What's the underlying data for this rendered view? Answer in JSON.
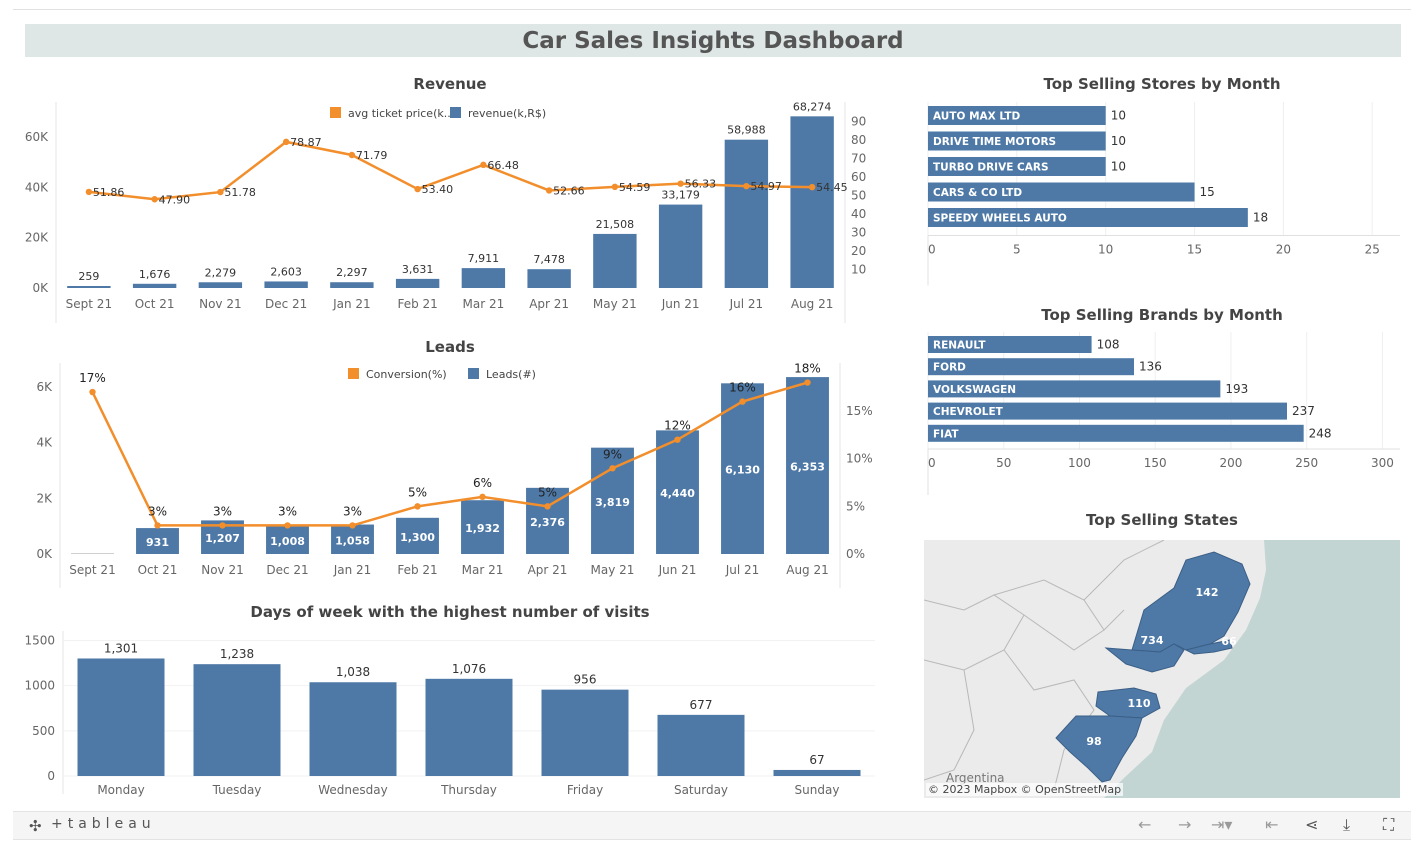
{
  "dashboard": {
    "title": "Car Sales Insights Dashboard"
  },
  "colors": {
    "bar": "#4e79a7",
    "line": "#f28e2b",
    "sea": "#c3d5d3",
    "land": "#ebebeb"
  },
  "revenue": {
    "title": "Revenue",
    "legend": {
      "line": "avg ticket price(k...",
      "bar": "revenue(k,R$)"
    },
    "chart_data": {
      "type": "bar",
      "categories": [
        "Sept 21",
        "Oct 21",
        "Nov 21",
        "Dec 21",
        "Jan 21",
        "Feb 21",
        "Mar 21",
        "Apr 21",
        "May 21",
        "Jun 21",
        "Jul 21",
        "Aug 21"
      ],
      "series": [
        {
          "name": "revenue(k,R$)",
          "type": "bar",
          "values": [
            259,
            1676,
            2279,
            2603,
            2297,
            3631,
            7911,
            7478,
            21508,
            33179,
            58988,
            68274
          ]
        },
        {
          "name": "avg ticket price(k...",
          "type": "line",
          "values": [
            51.86,
            47.9,
            51.78,
            78.87,
            71.79,
            53.4,
            66.48,
            52.66,
            54.59,
            56.33,
            54.97,
            54.45
          ]
        }
      ],
      "labels_bar": [
        "259",
        "1,676",
        "2,279",
        "2,603",
        "2,297",
        "3,631",
        "7,911",
        "7,478",
        "21,508",
        "33,179",
        "58,988",
        "68,274"
      ],
      "labels_line": [
        "51.86",
        "47.90",
        "51.78",
        "78.87",
        "71.79",
        "53.40",
        "66.48",
        "52.66",
        "54.59",
        "56.33",
        "54.97",
        "54.45"
      ],
      "y_left_ticks": [
        "0K",
        "20K",
        "40K",
        "60K"
      ],
      "y_left_range": [
        0,
        70000
      ],
      "y_right_ticks": [
        "10",
        "20",
        "30",
        "40",
        "50",
        "60",
        "70",
        "80",
        "90"
      ],
      "y_right_range": [
        0,
        95
      ]
    }
  },
  "leads": {
    "title": "Leads",
    "legend": {
      "line": "Conversion(%)",
      "bar": "Leads(#)"
    },
    "chart_data": {
      "type": "bar",
      "categories": [
        "Sept 21",
        "Oct 21",
        "Nov 21",
        "Dec 21",
        "Jan 21",
        "Feb 21",
        "Mar 21",
        "Apr 21",
        "May 21",
        "Jun 21",
        "Jul 21",
        "Aug 21"
      ],
      "series": [
        {
          "name": "Leads(#)",
          "type": "bar",
          "values": [
            0,
            931,
            1207,
            1008,
            1058,
            1300,
            1932,
            2376,
            3819,
            4440,
            6130,
            6353
          ]
        },
        {
          "name": "Conversion(%)",
          "type": "line",
          "values": [
            17,
            3,
            3,
            3,
            3,
            5,
            6,
            5,
            9,
            12,
            16,
            18
          ]
        }
      ],
      "labels_bar": [
        "",
        "931",
        "1,207",
        "1,008",
        "1,058",
        "1,300",
        "1,932",
        "2,376",
        "3,819",
        "4,440",
        "6,130",
        "6,353"
      ],
      "labels_line": [
        "17%",
        "3%",
        "3%",
        "3%",
        "3%",
        "5%",
        "6%",
        "5%",
        "9%",
        "12%",
        "16%",
        "18%"
      ],
      "y_left_ticks": [
        "0K",
        "2K",
        "4K",
        "6K"
      ],
      "y_left_range": [
        0,
        6500
      ],
      "y_right_ticks": [
        "0%",
        "5%",
        "10%",
        "15%"
      ],
      "y_right_range": [
        0,
        19
      ]
    }
  },
  "visits": {
    "title": "Days of week with the highest number of visits",
    "chart_data": {
      "type": "bar",
      "categories": [
        "Monday",
        "Tuesday",
        "Wednesday",
        "Thursday",
        "Friday",
        "Saturday",
        "Sunday"
      ],
      "values": [
        1301,
        1238,
        1038,
        1076,
        956,
        677,
        67
      ],
      "labels": [
        "1,301",
        "1,238",
        "1,038",
        "1,076",
        "956",
        "677",
        "67"
      ],
      "y_ticks": [
        "0",
        "500",
        "1000",
        "1500"
      ],
      "ylim": [
        0,
        1550
      ]
    }
  },
  "stores": {
    "title": "Top Selling Stores by Month",
    "chart_data": {
      "type": "bar",
      "orientation": "horizontal",
      "categories": [
        "AUTO MAX LTD",
        "DRIVE TIME MOTORS",
        "TURBO DRIVE CARS",
        "CARS & CO LTD",
        "SPEEDY WHEELS AUTO"
      ],
      "values": [
        10,
        10,
        10,
        15,
        18
      ],
      "x_ticks": [
        "0",
        "5",
        "10",
        "15",
        "20",
        "25"
      ],
      "xlim": [
        0,
        26
      ]
    }
  },
  "brands": {
    "title": "Top Selling Brands by Month",
    "chart_data": {
      "type": "bar",
      "orientation": "horizontal",
      "categories": [
        "RENAULT",
        "FORD",
        "VOLKSWAGEN",
        "CHEVROLET",
        "FIAT"
      ],
      "values": [
        108,
        136,
        193,
        237,
        248
      ],
      "x_ticks": [
        "0",
        "50",
        "100",
        "150",
        "200",
        "250",
        "300"
      ],
      "xlim": [
        0,
        305
      ]
    }
  },
  "states": {
    "title": "Top Selling States",
    "values": [
      "142",
      "734",
      "66",
      "110",
      "98"
    ],
    "country_label": "Argentina",
    "attribution": "© 2023 Mapbox  © OpenStreetMap"
  },
  "toolbar": {
    "logo": "+tableau",
    "logo_icon": "✣",
    "icons": [
      "undo-icon",
      "redo-icon",
      "revert-icon",
      "reset-icon",
      "share-icon",
      "download-icon",
      "fullscreen-icon"
    ]
  }
}
